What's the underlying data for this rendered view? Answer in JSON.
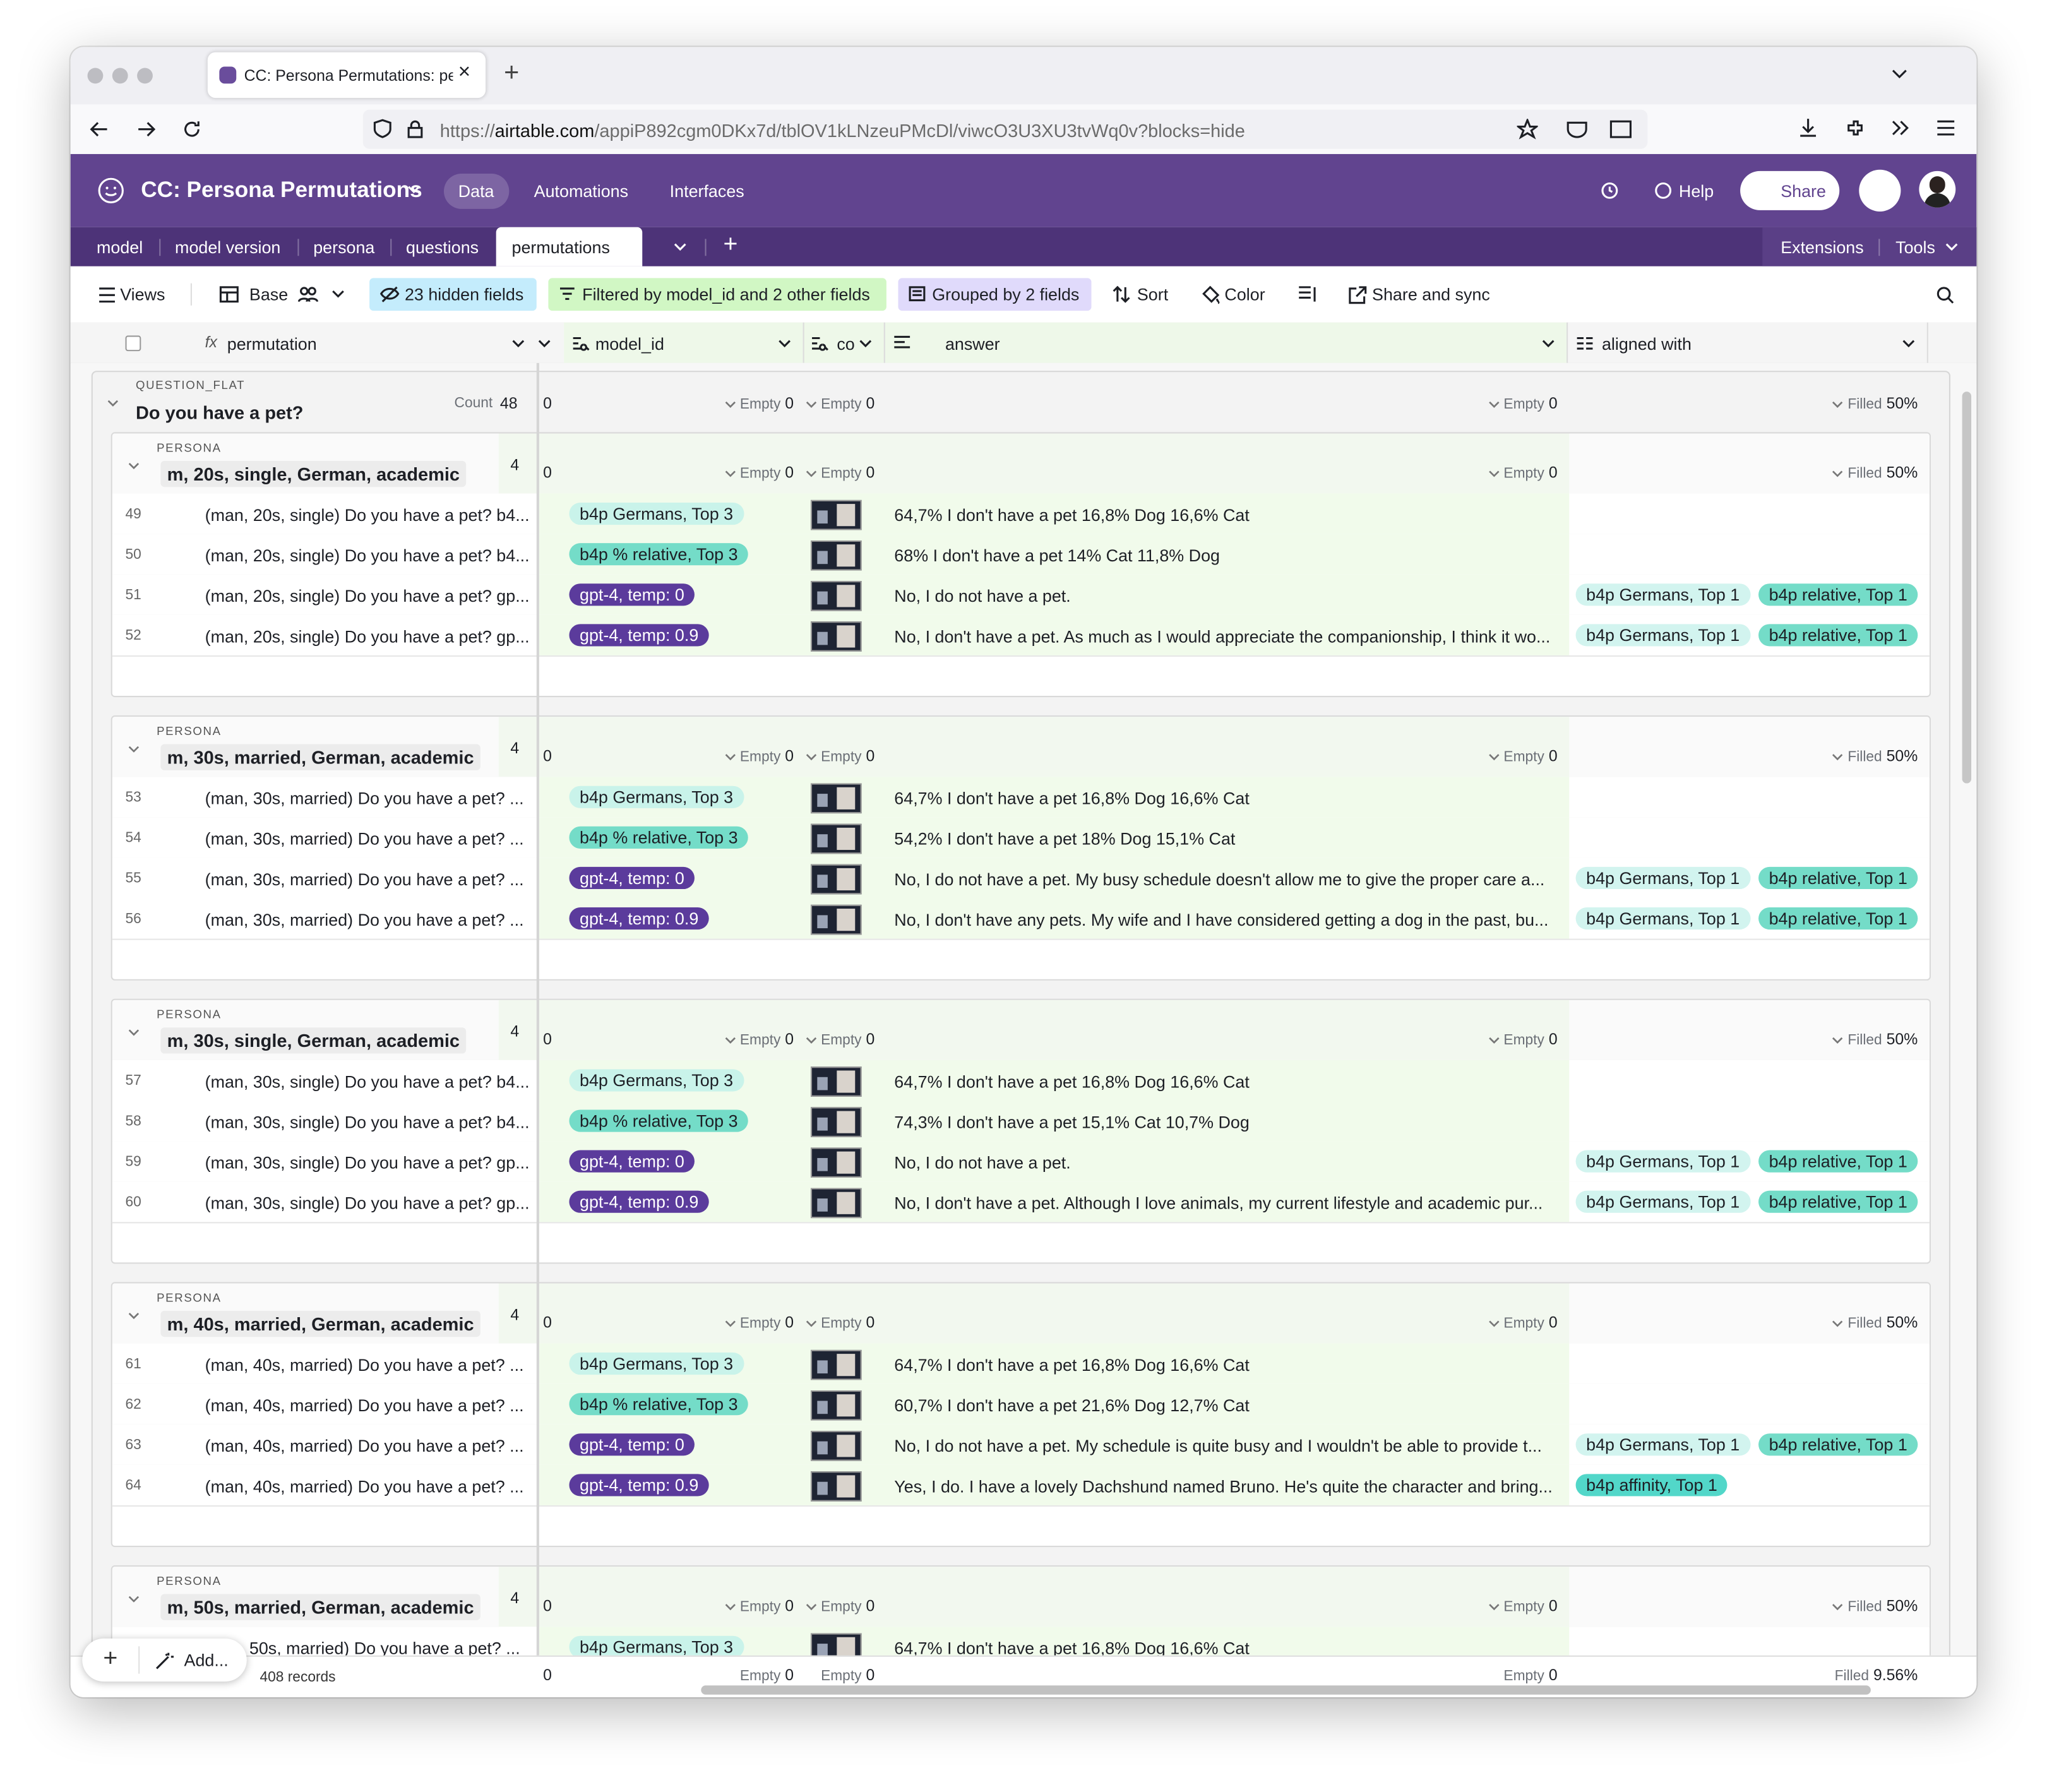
{
  "browser": {
    "tab_title": "CC: Persona Permutations: perm",
    "url_prefix": "https://",
    "url_host": "airtable.com",
    "url_path": "/appiP892cgm0DKx7d/tblOV1kLNzeuPMcDl/viwcO3U3XU3tvWq0v?blocks=hide"
  },
  "app": {
    "base_name": "CC: Persona Permutations",
    "nav": [
      "Data",
      "Automations",
      "Interfaces"
    ],
    "help": "Help",
    "share": "Share"
  },
  "table_tabs": [
    "model",
    "model version",
    "persona",
    "questions",
    "permutations"
  ],
  "extensions": "Extensions",
  "tools": "Tools",
  "toolbar": {
    "views": "Views",
    "base": "Base",
    "hidden": "23 hidden fields",
    "filter": "Filtered by model_id and 2 other fields",
    "group": "Grouped by 2 fields",
    "sort": "Sort",
    "color": "Color",
    "share_sync": "Share and sync"
  },
  "columns": [
    "permutation",
    "model_id",
    "co",
    "answer",
    "aligned with"
  ],
  "group": {
    "field_label": "QUESTION_FLAT",
    "title": "Do you have a pet?",
    "count_label": "Count",
    "count": "48",
    "summary": [
      {
        "value": "0"
      },
      {
        "label": "Empty",
        "value": "0"
      },
      {
        "label": "Empty",
        "value": "0"
      },
      {
        "label": "Empty",
        "value": "0"
      },
      {
        "label": "Filled",
        "value": "50%"
      }
    ],
    "subgroups": [
      {
        "field_label": "PERSONA",
        "title": "m, 20s, single, German, academic",
        "count": "4",
        "summary": [
          {
            "value": "0"
          },
          {
            "label": "Empty",
            "value": "0"
          },
          {
            "label": "Empty",
            "value": "0"
          },
          {
            "label": "Empty",
            "value": "0"
          },
          {
            "label": "Filled",
            "value": "50%"
          }
        ],
        "rows": [
          {
            "id": "49",
            "permutation": "(man, 20s, single) Do you have a pet? b4...",
            "model": {
              "text": "b4p Germans, Top 3",
              "color": "#c9f3ea"
            },
            "answer": "64,7% I don't have a pet 16,8% Dog 16,6% Cat",
            "aligned": []
          },
          {
            "id": "50",
            "permutation": "(man, 20s, single) Do you have a pet? b4...",
            "model": {
              "text": "b4p % relative, Top 3",
              "color": "#74dcc8"
            },
            "answer": "68% I don't have a pet 14% Cat 11,8% Dog",
            "aligned": []
          },
          {
            "id": "51",
            "permutation": "(man, 20s, single) Do you have a pet? gp...",
            "model": {
              "text": "gpt-4, temp: 0",
              "color": "#5b3b9c"
            },
            "answer": "No, I do not have a pet.",
            "aligned": [
              {
                "text": "b4p Germans, Top 1",
                "color": "#d2f4ef"
              },
              {
                "text": "b4p relative, Top 1",
                "color": "#74dcc8"
              }
            ]
          },
          {
            "id": "52",
            "permutation": "(man, 20s, single) Do you have a pet? gp...",
            "model": {
              "text": "gpt-4, temp: 0.9",
              "color": "#5b3b9c"
            },
            "answer": "No, I don't have a pet. As much as I would appreciate the companionship, I think it wo...",
            "aligned": [
              {
                "text": "b4p Germans, Top 1",
                "color": "#d2f4ef"
              },
              {
                "text": "b4p relative, Top 1",
                "color": "#74dcc8"
              }
            ]
          }
        ]
      },
      {
        "field_label": "PERSONA",
        "title": "m, 30s, married, German, academic",
        "count": "4",
        "summary": [
          {
            "value": "0"
          },
          {
            "label": "Empty",
            "value": "0"
          },
          {
            "label": "Empty",
            "value": "0"
          },
          {
            "label": "Empty",
            "value": "0"
          },
          {
            "label": "Filled",
            "value": "50%"
          }
        ],
        "rows": [
          {
            "id": "53",
            "permutation": "(man, 30s, married) Do you have a pet? ...",
            "model": {
              "text": "b4p Germans, Top 3",
              "color": "#c9f3ea"
            },
            "answer": "64,7% I don't have a pet 16,8% Dog 16,6% Cat",
            "aligned": []
          },
          {
            "id": "54",
            "permutation": "(man, 30s, married) Do you have a pet? ...",
            "model": {
              "text": "b4p % relative, Top 3",
              "color": "#74dcc8"
            },
            "answer": "54,2% I don't have a pet 18% Dog 15,1% Cat",
            "aligned": []
          },
          {
            "id": "55",
            "permutation": "(man, 30s, married) Do you have a pet? ...",
            "model": {
              "text": "gpt-4, temp: 0",
              "color": "#5b3b9c"
            },
            "answer": "No, I do not have a pet. My busy schedule doesn't allow me to give the proper care a...",
            "aligned": [
              {
                "text": "b4p Germans, Top 1",
                "color": "#d2f4ef"
              },
              {
                "text": "b4p relative, Top 1",
                "color": "#74dcc8"
              }
            ]
          },
          {
            "id": "56",
            "permutation": "(man, 30s, married) Do you have a pet? ...",
            "model": {
              "text": "gpt-4, temp: 0.9",
              "color": "#5b3b9c"
            },
            "answer": "No, I don't have any pets. My wife and I have considered getting a dog in the past, bu...",
            "aligned": [
              {
                "text": "b4p Germans, Top 1",
                "color": "#d2f4ef"
              },
              {
                "text": "b4p relative, Top 1",
                "color": "#74dcc8"
              }
            ]
          }
        ]
      },
      {
        "field_label": "PERSONA",
        "title": "m, 30s, single, German, academic",
        "count": "4",
        "summary": [
          {
            "value": "0"
          },
          {
            "label": "Empty",
            "value": "0"
          },
          {
            "label": "Empty",
            "value": "0"
          },
          {
            "label": "Empty",
            "value": "0"
          },
          {
            "label": "Filled",
            "value": "50%"
          }
        ],
        "rows": [
          {
            "id": "57",
            "permutation": "(man, 30s, single) Do you have a pet? b4...",
            "model": {
              "text": "b4p Germans, Top 3",
              "color": "#c9f3ea"
            },
            "answer": "64,7% I don't have a pet 16,8% Dog 16,6% Cat",
            "aligned": []
          },
          {
            "id": "58",
            "permutation": "(man, 30s, single) Do you have a pet? b4...",
            "model": {
              "text": "b4p % relative, Top 3",
              "color": "#74dcc8"
            },
            "answer": "74,3% I don't have a pet 15,1% Cat 10,7% Dog",
            "aligned": []
          },
          {
            "id": "59",
            "permutation": "(man, 30s, single) Do you have a pet? gp...",
            "model": {
              "text": "gpt-4, temp: 0",
              "color": "#5b3b9c"
            },
            "answer": "No, I do not have a pet.",
            "aligned": [
              {
                "text": "b4p Germans, Top 1",
                "color": "#d2f4ef"
              },
              {
                "text": "b4p relative, Top 1",
                "color": "#74dcc8"
              }
            ]
          },
          {
            "id": "60",
            "permutation": "(man, 30s, single) Do you have a pet? gp...",
            "model": {
              "text": "gpt-4, temp: 0.9",
              "color": "#5b3b9c"
            },
            "answer": "No, I don't have a pet. Although I love animals, my current lifestyle and academic pur...",
            "aligned": [
              {
                "text": "b4p Germans, Top 1",
                "color": "#d2f4ef"
              },
              {
                "text": "b4p relative, Top 1",
                "color": "#74dcc8"
              }
            ]
          }
        ]
      },
      {
        "field_label": "PERSONA",
        "title": "m, 40s, married, German, academic",
        "count": "4",
        "summary": [
          {
            "value": "0"
          },
          {
            "label": "Empty",
            "value": "0"
          },
          {
            "label": "Empty",
            "value": "0"
          },
          {
            "label": "Empty",
            "value": "0"
          },
          {
            "label": "Filled",
            "value": "50%"
          }
        ],
        "rows": [
          {
            "id": "61",
            "permutation": "(man, 40s, married) Do you have a pet? ...",
            "model": {
              "text": "b4p Germans, Top 3",
              "color": "#c9f3ea"
            },
            "answer": "64,7% I don't have a pet 16,8% Dog 16,6% Cat",
            "aligned": []
          },
          {
            "id": "62",
            "permutation": "(man, 40s, married) Do you have a pet? ...",
            "model": {
              "text": "b4p % relative, Top 3",
              "color": "#74dcc8"
            },
            "answer": "60,7% I don't have a pet 21,6% Dog 12,7% Cat",
            "aligned": []
          },
          {
            "id": "63",
            "permutation": "(man, 40s, married) Do you have a pet? ...",
            "model": {
              "text": "gpt-4, temp: 0",
              "color": "#5b3b9c"
            },
            "answer": "No, I do not have a pet. My schedule is quite busy and I wouldn't be able to provide t...",
            "aligned": [
              {
                "text": "b4p Germans, Top 1",
                "color": "#d2f4ef"
              },
              {
                "text": "b4p relative, Top 1",
                "color": "#74dcc8"
              }
            ]
          },
          {
            "id": "64",
            "permutation": "(man, 40s, married) Do you have a pet? ...",
            "model": {
              "text": "gpt-4, temp: 0.9",
              "color": "#5b3b9c"
            },
            "answer": "Yes, I do. I have a lovely Dachshund named Bruno. He's quite the character and bring...",
            "aligned": [
              {
                "text": "b4p affinity, Top 1",
                "color": "#52d7c9"
              }
            ]
          }
        ]
      },
      {
        "field_label": "PERSONA",
        "title": "m, 50s, married, German, academic",
        "count": "4",
        "summary": [
          {
            "value": "0"
          },
          {
            "label": "Empty",
            "value": "0"
          },
          {
            "label": "Empty",
            "value": "0"
          },
          {
            "label": "Empty",
            "value": "0"
          },
          {
            "label": "Filled",
            "value": "50%"
          }
        ],
        "rows": [
          {
            "permutation": "50s, married) Do you have a pet? ...",
            "model": {
              "text": "b4p Germans, Top 3",
              "color": "#c9f3ea"
            },
            "answer": "64,7% I don't have a pet 16,8% Dog 16,6% Cat",
            "aligned": []
          }
        ]
      }
    ]
  },
  "footer": {
    "add": "Add...",
    "records": "408 records",
    "summary": [
      {
        "value": "0"
      },
      {
        "label": "Empty",
        "value": "0"
      },
      {
        "label": "Empty",
        "value": "0"
      },
      {
        "label": "Empty",
        "value": "0"
      },
      {
        "label": "Filled",
        "value": "9.56%"
      }
    ]
  }
}
